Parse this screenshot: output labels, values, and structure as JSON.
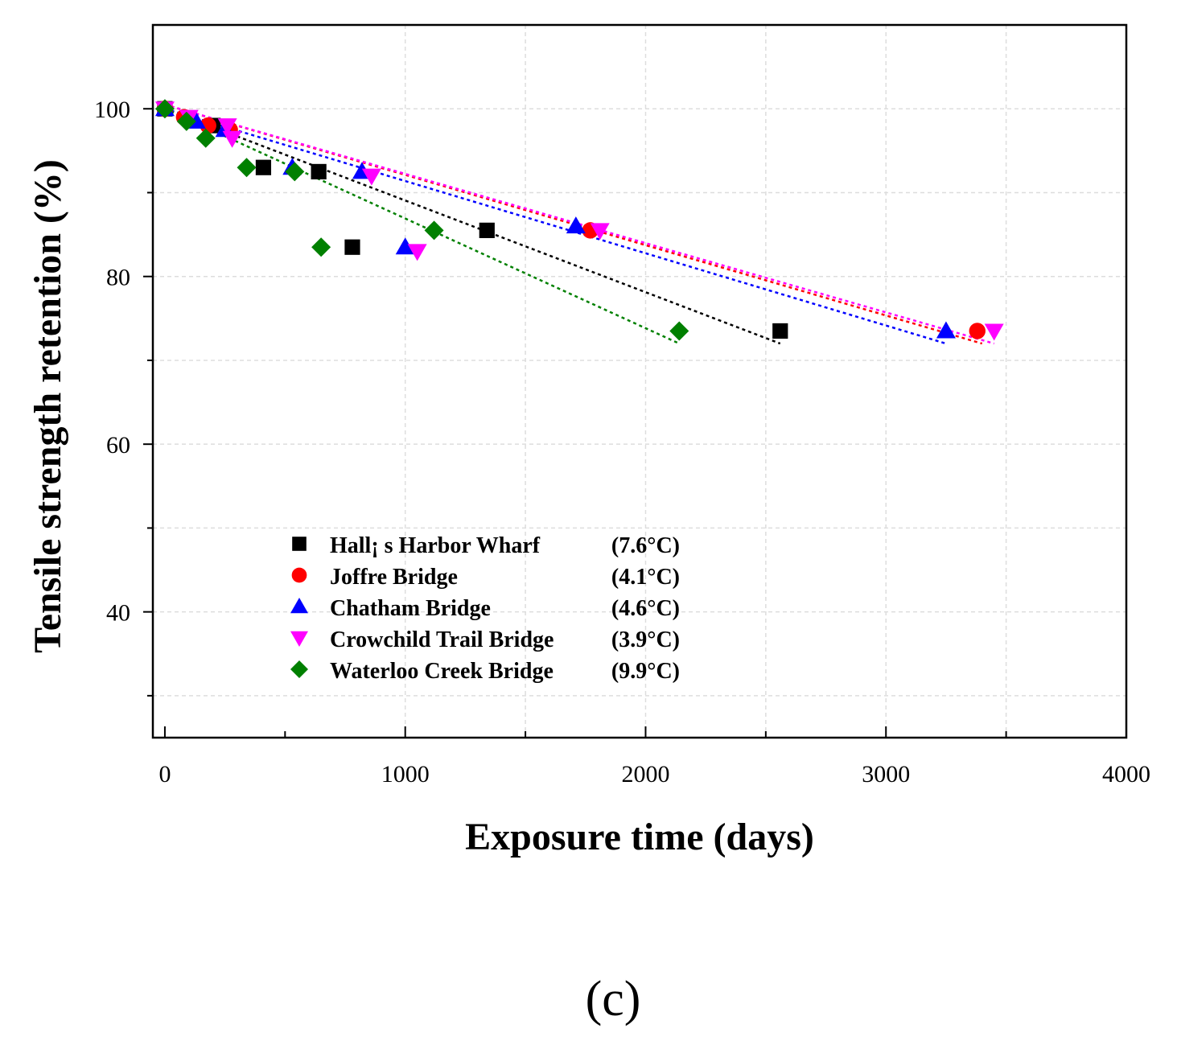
{
  "chart_data": {
    "type": "scatter",
    "xlabel": "Exposure time (days)",
    "ylabel": "Tensile strength retention (%)",
    "panel_label": "(c)",
    "xlim": [
      -50,
      4000
    ],
    "ylim": [
      25,
      110
    ],
    "xticks": [
      0,
      1000,
      2000,
      3000,
      4000
    ],
    "yticks": [
      40,
      60,
      80,
      100
    ],
    "grid": true,
    "legend_position": "lower-left",
    "series": [
      {
        "name": "Hall¡ s Harbor Wharf",
        "temp": "(7.6°C)",
        "color": "#000000",
        "marker": "square",
        "points": [
          [
            0,
            100
          ],
          [
            200,
            98
          ],
          [
            410,
            93
          ],
          [
            640,
            92.5
          ],
          [
            780,
            83.5
          ],
          [
            1340,
            85.5
          ],
          [
            2560,
            73.5
          ]
        ],
        "trend": [
          [
            0,
            100
          ],
          [
            2560,
            72
          ]
        ]
      },
      {
        "name": "Joffre Bridge",
        "temp": "(4.1°C)",
        "color": "#ff0000",
        "marker": "circle",
        "points": [
          [
            0,
            100
          ],
          [
            80,
            99
          ],
          [
            180,
            98
          ],
          [
            270,
            97.5
          ],
          [
            1770,
            85.5
          ],
          [
            3380,
            73.5
          ]
        ],
        "trend": [
          [
            0,
            100.5
          ],
          [
            3400,
            72
          ]
        ]
      },
      {
        "name": "Chatham Bridge",
        "temp": "(4.6°C)",
        "color": "#0000ff",
        "marker": "triangle-up",
        "points": [
          [
            0,
            100
          ],
          [
            130,
            98.5
          ],
          [
            250,
            97.5
          ],
          [
            530,
            93
          ],
          [
            820,
            92.5
          ],
          [
            1000,
            83.5
          ],
          [
            1710,
            86
          ],
          [
            3250,
            73.5
          ]
        ],
        "trend": [
          [
            0,
            100
          ],
          [
            3250,
            72
          ]
        ]
      },
      {
        "name": "Crowchild Trail Bridge",
        "temp": "(3.9°C)",
        "color": "#ff00ff",
        "marker": "triangle-down",
        "points": [
          [
            0,
            100
          ],
          [
            100,
            99
          ],
          [
            260,
            98
          ],
          [
            280,
            96.5
          ],
          [
            860,
            92
          ],
          [
            1050,
            83
          ],
          [
            1810,
            85.5
          ],
          [
            3450,
            73.5
          ]
        ],
        "trend": [
          [
            0,
            100.5
          ],
          [
            3450,
            72
          ]
        ]
      },
      {
        "name": "Waterloo Creek Bridge",
        "temp": "(9.9°C)",
        "color": "#008000",
        "marker": "diamond",
        "points": [
          [
            0,
            100
          ],
          [
            90,
            98.5
          ],
          [
            170,
            96.5
          ],
          [
            340,
            93
          ],
          [
            540,
            92.5
          ],
          [
            650,
            83.5
          ],
          [
            1120,
            85.5
          ],
          [
            2140,
            73.5
          ]
        ],
        "trend": [
          [
            0,
            100
          ],
          [
            2140,
            72
          ]
        ]
      }
    ]
  }
}
